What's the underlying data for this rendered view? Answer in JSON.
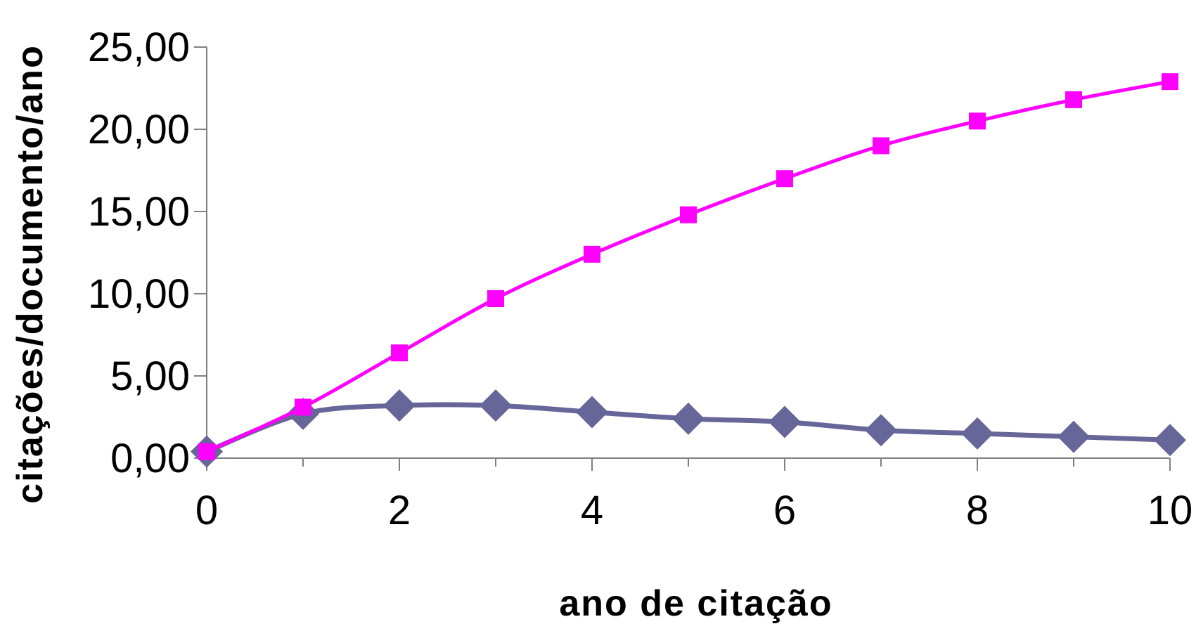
{
  "chart_data": {
    "type": "line",
    "title": "",
    "xlabel": "ano de citação",
    "ylabel": "citações/documento/ano",
    "xlim": [
      0,
      10
    ],
    "ylim": [
      0,
      25
    ],
    "x_ticks": [
      0,
      2,
      4,
      6,
      8,
      10
    ],
    "x_tick_labels": [
      "0",
      "2",
      "4",
      "6",
      "8",
      "10"
    ],
    "y_ticks": [
      0,
      5,
      10,
      15,
      20,
      25
    ],
    "y_tick_labels": [
      "0,00",
      "5,00",
      "10,00",
      "15,00",
      "20,00",
      "25,00"
    ],
    "grid": false,
    "legend": false,
    "x": [
      0,
      1,
      2,
      3,
      4,
      5,
      6,
      7,
      8,
      9,
      10
    ],
    "series": [
      {
        "values": [
          0.4,
          2.7,
          3.2,
          3.2,
          2.8,
          2.4,
          2.2,
          1.7,
          1.5,
          1.3,
          1.1
        ],
        "color": "#666699",
        "marker": "diamond"
      },
      {
        "values": [
          0.4,
          3.1,
          6.4,
          9.7,
          12.4,
          14.8,
          17.0,
          19.0,
          20.5,
          21.8,
          22.9
        ],
        "color": "#ff00ff",
        "marker": "square"
      }
    ]
  }
}
